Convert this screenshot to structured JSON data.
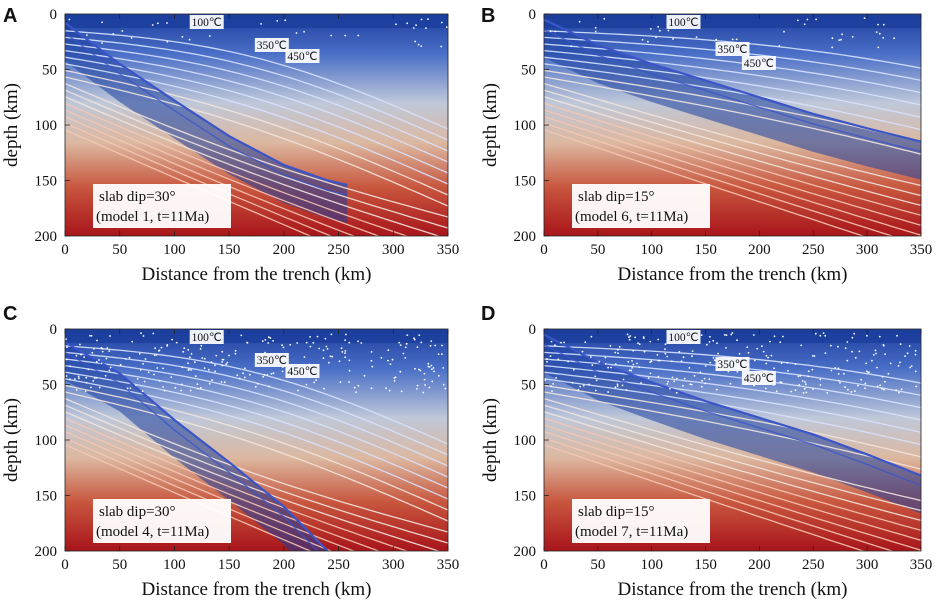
{
  "chart_data": [
    {
      "type": "contour",
      "panel_label": "A",
      "xlabel": "Distance from the trench (km)",
      "ylabel": "depth (km)",
      "xlim": [
        0,
        350
      ],
      "ylim": [
        200,
        0
      ],
      "xticks": [
        0,
        50,
        100,
        150,
        200,
        250,
        300,
        350
      ],
      "yticks": [
        0,
        50,
        100,
        150,
        200
      ],
      "slab_dip_deg": 30,
      "isotherm_labels": [
        "100℃",
        "350℃",
        "450℃"
      ],
      "annotation_lines": [
        "slab dip=30°",
        "(model 1, t=11Ma)"
      ],
      "earthquakes": "sparse",
      "slab_top_km": [
        [
          0,
          8
        ],
        [
          50,
          45
        ],
        [
          100,
          78
        ],
        [
          150,
          110
        ],
        [
          200,
          136
        ],
        [
          240,
          150
        ],
        [
          258,
          154
        ]
      ]
    },
    {
      "type": "contour",
      "panel_label": "B",
      "xlabel": "Distance from the trench (km)",
      "ylabel": "depth (km)",
      "xlim": [
        0,
        350
      ],
      "ylim": [
        200,
        0
      ],
      "xticks": [
        0,
        50,
        100,
        150,
        200,
        250,
        300,
        350
      ],
      "yticks": [
        0,
        50,
        100,
        150,
        200
      ],
      "slab_dip_deg": 15,
      "isotherm_labels": [
        "100℃",
        "350℃",
        "450℃"
      ],
      "annotation_lines": [
        "slab dip=15°",
        "(model 6, t=11Ma)"
      ],
      "earthquakes": "sparse",
      "slab_top_km": [
        [
          0,
          5
        ],
        [
          50,
          28
        ],
        [
          100,
          45
        ],
        [
          150,
          60
        ],
        [
          200,
          75
        ],
        [
          250,
          90
        ],
        [
          300,
          103
        ],
        [
          350,
          115
        ]
      ]
    },
    {
      "type": "contour",
      "panel_label": "C",
      "xlabel": "Distance from the trench (km)",
      "ylabel": "depth (km)",
      "xlim": [
        0,
        350
      ],
      "ylim": [
        200,
        0
      ],
      "xticks": [
        0,
        50,
        100,
        150,
        200,
        250,
        300,
        350
      ],
      "yticks": [
        0,
        50,
        100,
        150,
        200
      ],
      "slab_dip_deg": 30,
      "isotherm_labels": [
        "100℃",
        "350℃",
        "450℃"
      ],
      "annotation_lines": [
        "slab dip=30°",
        "(model 4, t=11Ma)"
      ],
      "earthquakes": "dense",
      "slab_top_km": [
        [
          0,
          12
        ],
        [
          50,
          40
        ],
        [
          100,
          82
        ],
        [
          150,
          120
        ],
        [
          200,
          160
        ],
        [
          240,
          200
        ]
      ]
    },
    {
      "type": "contour",
      "panel_label": "D",
      "xlabel": "Distance from the trench (km)",
      "ylabel": "depth (km)",
      "xlim": [
        0,
        350
      ],
      "ylim": [
        200,
        0
      ],
      "xticks": [
        0,
        50,
        100,
        150,
        200,
        250,
        300,
        350
      ],
      "yticks": [
        0,
        50,
        100,
        150,
        200
      ],
      "slab_dip_deg": 15,
      "isotherm_labels": [
        "100℃",
        "350℃",
        "450℃"
      ],
      "annotation_lines": [
        "slab dip=15°",
        "(model 7, t=11Ma)"
      ],
      "earthquakes": "dense",
      "slab_top_km": [
        [
          0,
          5
        ],
        [
          50,
          30
        ],
        [
          100,
          48
        ],
        [
          150,
          65
        ],
        [
          200,
          80
        ],
        [
          250,
          95
        ],
        [
          300,
          113
        ],
        [
          350,
          132
        ]
      ]
    }
  ],
  "colors": {
    "cold": "#1c3f9e",
    "mid": "#d9d0c6",
    "hot": "#a8141a",
    "slab_line": "#3b55c8",
    "isotherm": "#e9f0ff"
  }
}
